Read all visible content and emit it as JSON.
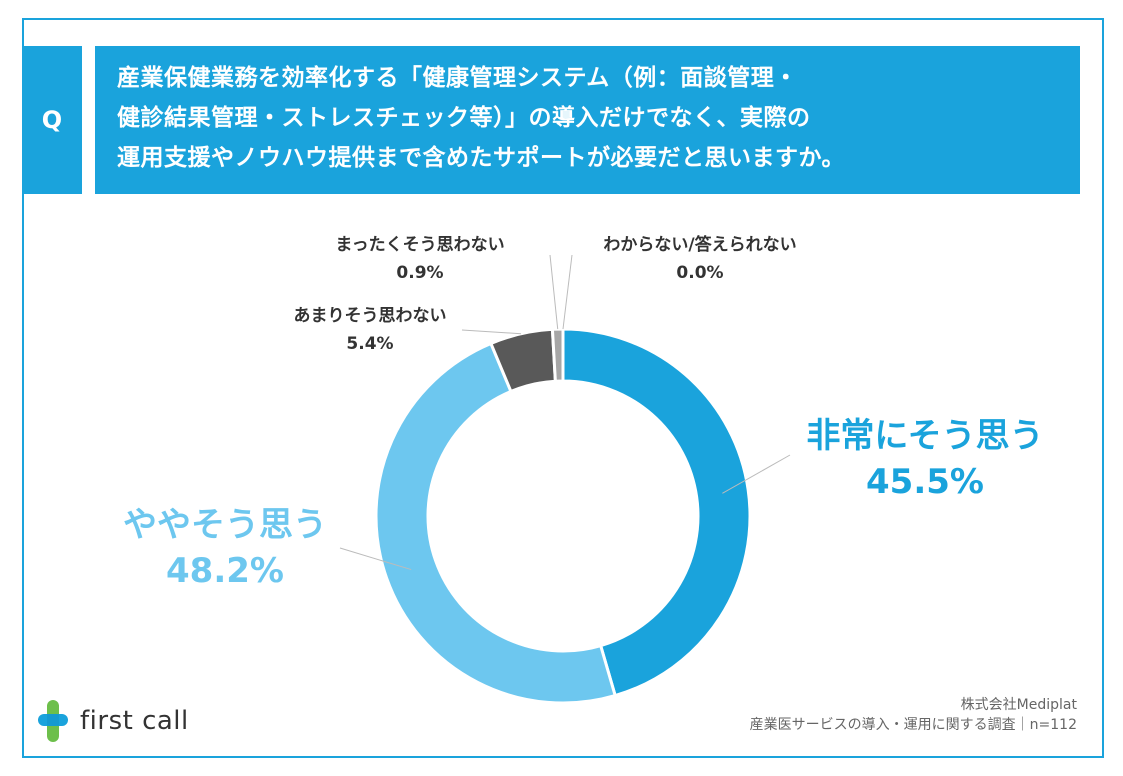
{
  "question": {
    "marker": "Q",
    "lines": [
      "産業保健業務を効率化する「健康管理システム（例：面談管理・",
      "健診結果管理・ストレスチェック等）」の導入だけでなく、実際の",
      "運用支援やノウハウ提供まで含めたサポートが必要だと思いますか。"
    ]
  },
  "colors": {
    "accent": "#1aa3dc",
    "light_blue": "#6dc7ef",
    "dark_gray": "#595959",
    "gray": "#a6a6a6",
    "text": "#333333"
  },
  "chart_data": {
    "type": "pie",
    "variant": "donut",
    "order": "clockwise from top",
    "slices": [
      {
        "name": "非常にそう思う",
        "value": 45.5,
        "label": "45.5%",
        "color": "#1aa3dc"
      },
      {
        "name": "ややそう思う",
        "value": 48.2,
        "label": "48.2%",
        "color": "#6dc7ef"
      },
      {
        "name": "あまりそう思わない",
        "value": 5.4,
        "label": "5.4%",
        "color": "#595959"
      },
      {
        "name": "まったくそう思わない",
        "value": 0.9,
        "label": "0.9%",
        "color": "#a6a6a6"
      },
      {
        "name": "わからない/答えられない",
        "value": 0.0,
        "label": "0.0%",
        "color": "#d9d9d9"
      }
    ]
  },
  "logo": {
    "text": "first call"
  },
  "footer": {
    "company": "株式会社Mediplat",
    "survey": "産業医サービスの導入・運用に関する調査｜n=112"
  }
}
